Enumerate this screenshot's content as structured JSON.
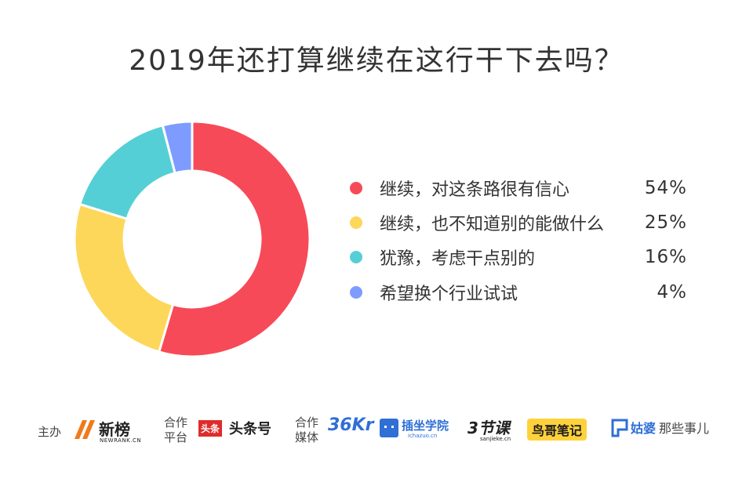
{
  "chart_data": {
    "type": "donut",
    "title": "2019年还打算继续在这行干下去吗？",
    "series": [
      {
        "label": "继续，对这条路很有信心",
        "value": 54,
        "display": "54%",
        "color": "#f74a58"
      },
      {
        "label": "继续，也不知道别的能做什么",
        "value": 25,
        "display": "25%",
        "color": "#fcd75a"
      },
      {
        "label": "犹豫，考虑干点别的",
        "value": 16,
        "display": "16%",
        "color": "#55cfd6"
      },
      {
        "label": "希望换个行业试试",
        "value": 4,
        "display": "4%",
        "color": "#7e9cff"
      }
    ]
  },
  "footer": {
    "host_label": "主办",
    "host_logo": "新榜",
    "host_logo_sub": "NEWRANK.CN",
    "platform_label_1": "合作",
    "platform_label_2": "平台",
    "platform_logo_box": "头条",
    "platform_logo": "头条号",
    "media_label_1": "合作",
    "media_label_2": "媒体",
    "media_36kr": "36Kr",
    "media_chazuo": "插坐学院",
    "media_chazuo_sub": "ichazuo.cn",
    "media_3jieke": "3节课",
    "media_3jieke_sub": "sanjieke.cn",
    "media_niaoge": "鸟哥笔记",
    "media_gupo": "姑婆",
    "media_gupo_tail": "那些事儿"
  }
}
